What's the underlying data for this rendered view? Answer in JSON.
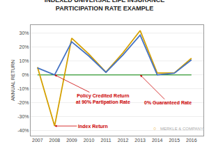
{
  "chart_data": {
    "type": "line",
    "title": "INDEXED UNIVERSAL LIFE INSURANCE\nPARTICIPATION RATE EXAMPLE",
    "ylabel": "ANNUAL RETURN",
    "x": [
      2007,
      2008,
      2009,
      2010,
      2011,
      2012,
      2013,
      2014,
      2015,
      2016
    ],
    "series": [
      {
        "color": "#339933",
        "values": [
          0.0,
          0.0,
          0.0,
          0.0,
          0.0,
          0.0,
          0.0,
          0.0,
          0.0,
          0.0
        ]
      },
      {
        "color": "#D4A000",
        "values": [
          0.055,
          -0.37,
          0.265,
          0.151,
          0.02,
          0.16,
          0.32,
          0.013,
          0.013,
          0.12
        ]
      },
      {
        "color": "#4472C4",
        "values": [
          0.05,
          0.0,
          0.239,
          0.136,
          0.018,
          0.144,
          0.288,
          0.0,
          0.012,
          0.108
        ]
      }
    ],
    "xlim": [
      2006.6,
      2016.7
    ],
    "xticks": [
      2007,
      2008,
      2009,
      2010,
      2011,
      2012,
      2013,
      2014,
      2015,
      2016
    ],
    "ylim": [
      -0.44,
      0.36
    ],
    "yticks": [
      {
        "value": -0.4,
        "label": "-40%"
      },
      {
        "value": -0.3,
        "label": "-30%"
      },
      {
        "value": -0.2,
        "label": "-20%"
      },
      {
        "value": -0.1,
        "label": "-10%"
      },
      {
        "value": 0.0,
        "label": "0%"
      },
      {
        "value": 0.1,
        "label": "10%"
      },
      {
        "value": 0.2,
        "label": "20%"
      },
      {
        "value": 0.3,
        "label": "30%"
      }
    ],
    "grid": "y",
    "annotations": [
      "0% Guaranteed Rate",
      "Index Return",
      "Policy Credited Return\nat 90% Partipation Rate",
      "○",
      "MERKLE & COMPANY"
    ]
  }
}
